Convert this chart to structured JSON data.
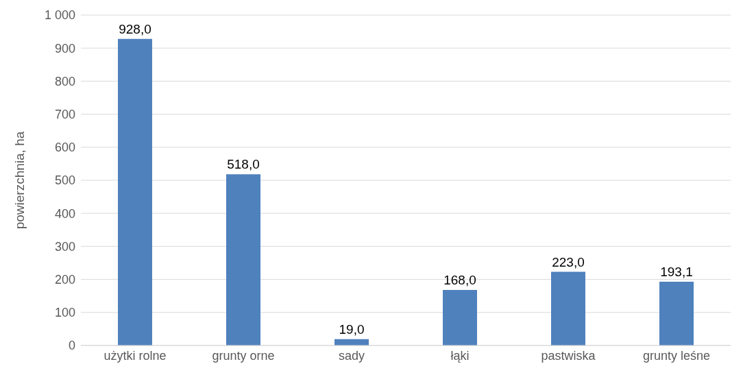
{
  "chart_data": {
    "type": "bar",
    "ylabel": "powierzchnia, ha",
    "categories": [
      "użytki rolne",
      "grunty orne",
      "sady",
      "łąki",
      "pastwiska",
      "grunty leśne"
    ],
    "values": [
      928.0,
      518.0,
      19.0,
      168.0,
      223.0,
      193.1
    ],
    "value_labels": [
      "928,0",
      "518,0",
      "19,0",
      "168,0",
      "223,0",
      "193,1"
    ],
    "color": "#4f81bd",
    "ylim": [
      0,
      1000
    ],
    "yticks": [
      0,
      100,
      200,
      300,
      400,
      500,
      600,
      700,
      800,
      900,
      {
        "value": 1000,
        "label": "1 000"
      }
    ],
    "grid": "y"
  }
}
